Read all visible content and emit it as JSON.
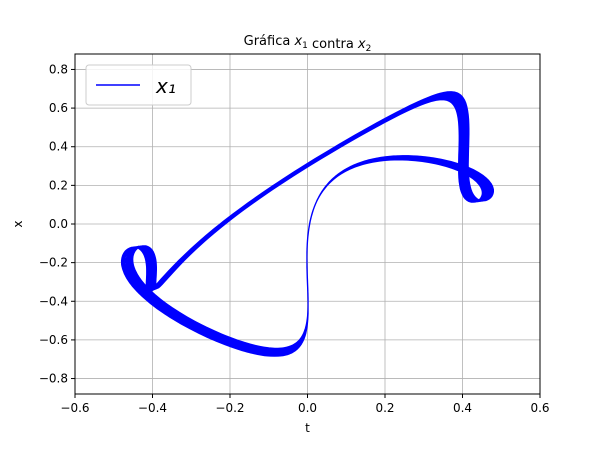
{
  "chart_data": {
    "type": "line",
    "title": "Gráfica x₁ contra x₂",
    "xlabel": "t",
    "ylabel": "x",
    "xlim": [
      -0.6,
      0.6
    ],
    "ylim": [
      -0.88,
      0.88
    ],
    "xticks": [
      -0.6,
      -0.4,
      -0.2,
      0.0,
      0.2,
      0.4,
      0.6
    ],
    "yticks": [
      -0.8,
      -0.6,
      -0.4,
      -0.2,
      0.0,
      0.2,
      0.4,
      0.6,
      0.8
    ],
    "xtick_labels": [
      "−0.6",
      "−0.4",
      "−0.2",
      "0.0",
      "0.2",
      "0.4",
      "0.6"
    ],
    "ytick_labels": [
      "−0.8",
      "−0.6",
      "−0.4",
      "−0.2",
      "0.0",
      "0.2",
      "0.4",
      "0.6",
      "0.8"
    ],
    "grid": true,
    "legend": {
      "placement": "top-left"
    },
    "series": [
      {
        "name": "x₁",
        "color": "#0000ff",
        "curve": {
          "frequencies": [
            1,
            2
          ],
          "amplitude_x": 0.48,
          "amplitude_y": 0.75,
          "phase_offset": 0.0,
          "cycles": 46,
          "amplitude_jitter": 0.06
        }
      }
    ]
  }
}
